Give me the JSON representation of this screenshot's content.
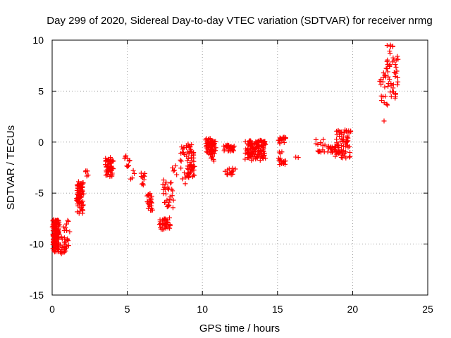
{
  "chart_data": {
    "type": "scatter",
    "title": "Day 299 of 2020, Sidereal Day-to-day VTEC variation (SDTVAR) for receiver nrmg",
    "xlabel": "GPS time / hours",
    "ylabel": "SDTVAR / TECUs",
    "xlim": [
      0,
      25
    ],
    "ylim": [
      -15,
      10
    ],
    "xticks": [
      "0",
      "5",
      "10",
      "15",
      "20",
      "25"
    ],
    "yticks": [
      "-15",
      "-10",
      "-5",
      "0",
      "5",
      "10"
    ],
    "grid": true,
    "marker": "+",
    "color": "#ff0000",
    "clusters": [
      {
        "x": [
          0.0,
          0.5
        ],
        "y": [
          -10.8,
          -7.6
        ],
        "n": 140
      },
      {
        "x": [
          0.5,
          1.1
        ],
        "y": [
          -11.0,
          -9.2
        ],
        "n": 25
      },
      {
        "x": [
          0.7,
          1.2
        ],
        "y": [
          -8.8,
          -7.6
        ],
        "n": 8
      },
      {
        "x": [
          1.6,
          2.1
        ],
        "y": [
          -7.0,
          -3.8
        ],
        "n": 90
      },
      {
        "x": [
          2.2,
          2.4
        ],
        "y": [
          -3.5,
          -2.8
        ],
        "n": 5
      },
      {
        "x": [
          3.5,
          4.1
        ],
        "y": [
          -3.4,
          -1.5
        ],
        "n": 55
      },
      {
        "x": [
          4.8,
          5.2
        ],
        "y": [
          -2.5,
          -1.3
        ],
        "n": 10
      },
      {
        "x": [
          5.2,
          5.5
        ],
        "y": [
          -3.8,
          -2.2
        ],
        "n": 4
      },
      {
        "x": [
          5.9,
          6.2
        ],
        "y": [
          -4.5,
          -3.0
        ],
        "n": 10
      },
      {
        "x": [
          6.3,
          6.7
        ],
        "y": [
          -6.8,
          -4.8
        ],
        "n": 25
      },
      {
        "x": [
          7.1,
          7.9
        ],
        "y": [
          -8.6,
          -7.4
        ],
        "n": 35
      },
      {
        "x": [
          7.3,
          8.1
        ],
        "y": [
          -6.5,
          -3.6
        ],
        "n": 30
      },
      {
        "x": [
          8.0,
          8.3
        ],
        "y": [
          -3.2,
          -2.3
        ],
        "n": 5
      },
      {
        "x": [
          8.5,
          8.9
        ],
        "y": [
          -4.2,
          -0.4
        ],
        "n": 15
      },
      {
        "x": [
          8.9,
          9.5
        ],
        "y": [
          -3.5,
          -0.1
        ],
        "n": 60
      },
      {
        "x": [
          10.2,
          10.9
        ],
        "y": [
          -1.2,
          0.4
        ],
        "n": 65
      },
      {
        "x": [
          10.5,
          10.8
        ],
        "y": [
          -1.9,
          -1.2
        ],
        "n": 6
      },
      {
        "x": [
          11.4,
          12.2
        ],
        "y": [
          -0.9,
          -0.3
        ],
        "n": 30
      },
      {
        "x": [
          11.5,
          12.2
        ],
        "y": [
          -3.2,
          -2.5
        ],
        "n": 15
      },
      {
        "x": [
          12.8,
          14.3
        ],
        "y": [
          -1.8,
          0.2
        ],
        "n": 130
      },
      {
        "x": [
          15.0,
          15.6
        ],
        "y": [
          -0.2,
          0.5
        ],
        "n": 15
      },
      {
        "x": [
          15.0,
          15.6
        ],
        "y": [
          -2.2,
          -1.5
        ],
        "n": 15
      },
      {
        "x": [
          15.1,
          15.3
        ],
        "y": [
          -1.2,
          -0.8
        ],
        "n": 3
      },
      {
        "x": [
          16.2,
          16.4
        ],
        "y": [
          -2.1,
          -0.1
        ],
        "n": 2
      },
      {
        "x": [
          17.5,
          18.2
        ],
        "y": [
          -1.0,
          0.4
        ],
        "n": 15
      },
      {
        "x": [
          18.3,
          19.0
        ],
        "y": [
          -1.0,
          -0.3
        ],
        "n": 20
      },
      {
        "x": [
          18.8,
          19.9
        ],
        "y": [
          -1.6,
          1.2
        ],
        "n": 70
      },
      {
        "x": [
          21.8,
          22.4
        ],
        "y": [
          3.6,
          8.0
        ],
        "n": 20
      },
      {
        "x": [
          22.0,
          22.2
        ],
        "y": [
          2.0,
          2.2
        ],
        "n": 1
      },
      {
        "x": [
          22.2,
          23.1
        ],
        "y": [
          4.3,
          9.9
        ],
        "n": 45
      }
    ]
  }
}
